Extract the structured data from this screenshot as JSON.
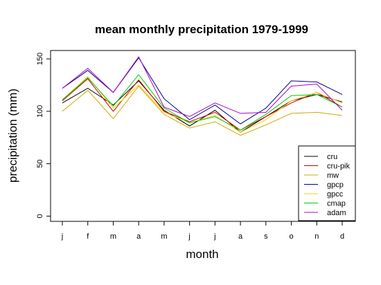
{
  "chart_data": {
    "type": "line",
    "title": "mean monthly precipitation 1979-1999",
    "xlabel": "month",
    "ylabel": "precipitation (mm)",
    "categories": [
      "j",
      "f",
      "m",
      "a",
      "m",
      "j",
      "j",
      "a",
      "s",
      "o",
      "n",
      "d"
    ],
    "yticks": [
      0,
      50,
      100,
      150
    ],
    "ylim": [
      -5,
      158
    ],
    "grid": false,
    "legend_position": "bottom-right",
    "series": [
      {
        "name": "cru",
        "color": "#000000",
        "values": [
          108,
          122,
          106,
          129,
          101,
          86,
          101,
          80,
          95,
          110,
          116,
          109
        ]
      },
      {
        "name": "cru-pik",
        "color": "#cc0000",
        "values": [
          110,
          131,
          100,
          130,
          100,
          90,
          99,
          82,
          95,
          108,
          118,
          104
        ]
      },
      {
        "name": "mw",
        "color": "#ccaa00",
        "values": [
          100,
          120,
          93,
          124,
          97,
          84,
          90,
          77,
          87,
          98,
          99,
          96
        ]
      },
      {
        "name": "gpcp",
        "color": "#000088",
        "values": [
          122,
          139,
          118,
          151,
          112,
          92,
          106,
          88,
          103,
          129,
          128,
          116
        ]
      },
      {
        "name": "gpcc",
        "color": "#ffcc00",
        "values": [
          111,
          133,
          103,
          125,
          99,
          89,
          96,
          80,
          92,
          110,
          118,
          108
        ]
      },
      {
        "name": "cmap",
        "color": "#00cc00",
        "values": [
          111,
          132,
          105,
          135,
          103,
          89,
          95,
          82,
          97,
          115,
          116,
          104
        ]
      },
      {
        "name": "adam",
        "color": "#aa00cc",
        "values": [
          122,
          141,
          118,
          152,
          104,
          95,
          108,
          98,
          99,
          124,
          126,
          101
        ]
      }
    ]
  }
}
